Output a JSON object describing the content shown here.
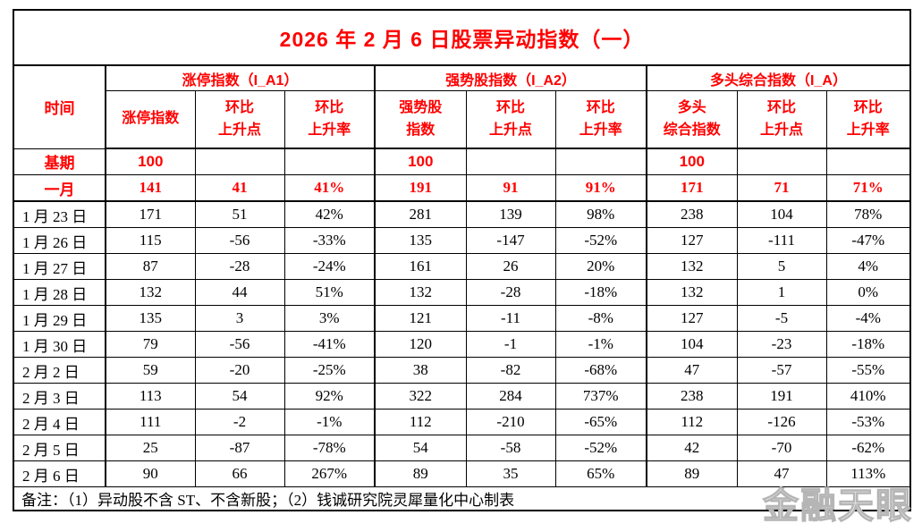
{
  "chart_data": {
    "type": "table",
    "title": "2026 年 2 月 6 日股票异动指数（一）",
    "time_header": "时间",
    "column_groups": [
      {
        "label": "涨停指数（I_A1）"
      },
      {
        "label": "强势股指数（I_A2）"
      },
      {
        "label": "多头综合指数（I_A）"
      }
    ],
    "sub_headers": [
      "涨停指数",
      "环比\n上升点",
      "环比\n上升率",
      "强势股\n指数",
      "环比\n上升点",
      "环比\n上升率",
      "多头\n综合指数",
      "环比\n上升点",
      "环比\n上升率"
    ],
    "rows": [
      {
        "label": "基期",
        "style": "base",
        "cells": [
          "100",
          "",
          "",
          "100",
          "",
          "",
          "100",
          "",
          ""
        ]
      },
      {
        "label": "一月",
        "style": "month",
        "cells": [
          "141",
          "41",
          "41%",
          "191",
          "91",
          "91%",
          "171",
          "71",
          "71%"
        ]
      },
      {
        "label": "1 月 23 日",
        "style": "",
        "cells": [
          "171",
          "51",
          "42%",
          "281",
          "139",
          "98%",
          "238",
          "104",
          "78%"
        ]
      },
      {
        "label": "1 月 26 日",
        "style": "",
        "cells": [
          "115",
          "-56",
          "-33%",
          "135",
          "-147",
          "-52%",
          "127",
          "-111",
          "-47%"
        ]
      },
      {
        "label": "1 月 27 日",
        "style": "",
        "cells": [
          "87",
          "-28",
          "-24%",
          "161",
          "26",
          "20%",
          "132",
          "5",
          "4%"
        ]
      },
      {
        "label": "1 月 28 日",
        "style": "",
        "cells": [
          "132",
          "44",
          "51%",
          "132",
          "-28",
          "-18%",
          "132",
          "1",
          "0%"
        ]
      },
      {
        "label": "1 月 29 日",
        "style": "",
        "cells": [
          "135",
          "3",
          "3%",
          "121",
          "-11",
          "-8%",
          "127",
          "-5",
          "-4%"
        ]
      },
      {
        "label": "1 月 30 日",
        "style": "",
        "cells": [
          "79",
          "-56",
          "-41%",
          "120",
          "-1",
          "-1%",
          "104",
          "-23",
          "-18%"
        ]
      },
      {
        "label": "2 月 2 日",
        "style": "",
        "cells": [
          "59",
          "-20",
          "-25%",
          "38",
          "-82",
          "-68%",
          "47",
          "-57",
          "-55%"
        ]
      },
      {
        "label": "2 月 3 日",
        "style": "",
        "cells": [
          "113",
          "54",
          "92%",
          "322",
          "284",
          "737%",
          "238",
          "191",
          "410%"
        ]
      },
      {
        "label": "2 月 4 日",
        "style": "",
        "cells": [
          "111",
          "-2",
          "-1%",
          "112",
          "-210",
          "-65%",
          "112",
          "-126",
          "-53%"
        ]
      },
      {
        "label": "2 月 5 日",
        "style": "",
        "cells": [
          "25",
          "-87",
          "-78%",
          "54",
          "-58",
          "-52%",
          "42",
          "-70",
          "-62%"
        ]
      },
      {
        "label": "2 月 6 日",
        "style": "",
        "cells": [
          "90",
          "66",
          "267%",
          "89",
          "35",
          "65%",
          "89",
          "47",
          "113%"
        ]
      }
    ],
    "footnote": "备注：（1）异动股不含 ST、不含新股；（2）钱诚研究院灵犀量化中心制表"
  },
  "watermark": "金融天眼",
  "colors": {
    "accent": "#FF0000",
    "text": "#000000",
    "border": "#000000",
    "watermark_gray": "#B5B5B5"
  }
}
